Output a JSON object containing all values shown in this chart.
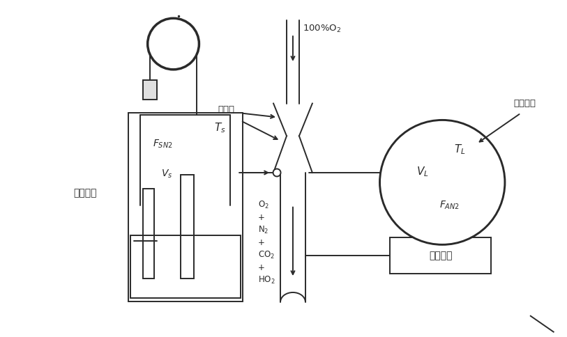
{
  "bg_color": "#ffffff",
  "line_color": "#2a2a2a",
  "fig_width": 8.13,
  "fig_height": 4.84,
  "labels": {
    "o2_supply": "100%O$_2$",
    "one_way_valve": "单向阀",
    "lung_spirometer": "肺活量计",
    "lung_airway": "肺与气道",
    "n_analyzer": "氮分析器",
    "ts": "$T_s$",
    "vs": "$V_s$",
    "fsn2": "$F_{SN2}$",
    "tl": "$T_L$",
    "vl": "$V_L$",
    "fan2": "$F_{AN2}$",
    "o2": "O$_2$",
    "plus1": "+",
    "n2": "N$_2$",
    "plus2": "+",
    "co2": "CO$_2$",
    "plus3": "+",
    "ho2": "HO$_2$"
  }
}
